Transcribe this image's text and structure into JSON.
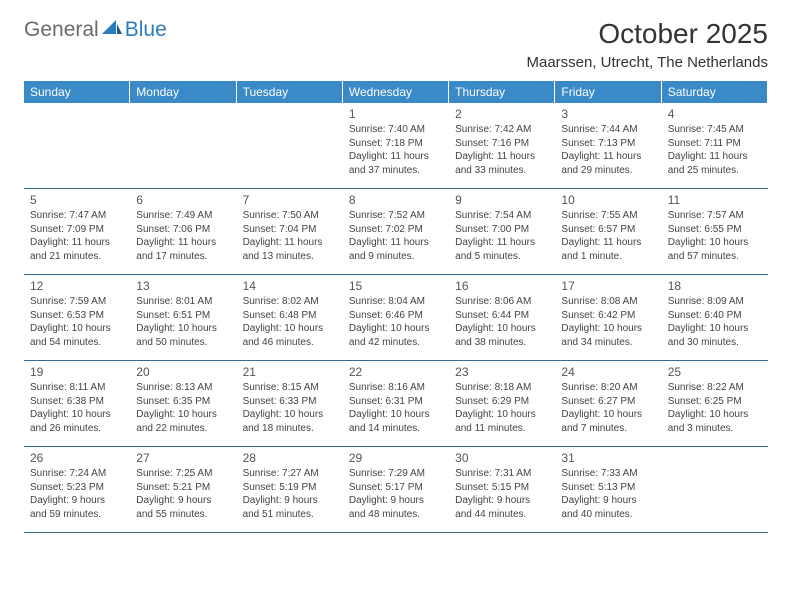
{
  "logo": {
    "word1": "General",
    "word2": "Blue"
  },
  "title": "October 2025",
  "location": "Maarssen, Utrecht, The Netherlands",
  "colors": {
    "header_bg": "#3a8ac8",
    "border": "#3a6a94",
    "logo_gray": "#6b6b6b",
    "logo_blue": "#2b7bbf"
  },
  "weekdays": [
    "Sunday",
    "Monday",
    "Tuesday",
    "Wednesday",
    "Thursday",
    "Friday",
    "Saturday"
  ],
  "weeks": [
    [
      null,
      null,
      null,
      {
        "n": "1",
        "sr": "Sunrise: 7:40 AM",
        "ss": "Sunset: 7:18 PM",
        "dl": "Daylight: 11 hours and 37 minutes."
      },
      {
        "n": "2",
        "sr": "Sunrise: 7:42 AM",
        "ss": "Sunset: 7:16 PM",
        "dl": "Daylight: 11 hours and 33 minutes."
      },
      {
        "n": "3",
        "sr": "Sunrise: 7:44 AM",
        "ss": "Sunset: 7:13 PM",
        "dl": "Daylight: 11 hours and 29 minutes."
      },
      {
        "n": "4",
        "sr": "Sunrise: 7:45 AM",
        "ss": "Sunset: 7:11 PM",
        "dl": "Daylight: 11 hours and 25 minutes."
      }
    ],
    [
      {
        "n": "5",
        "sr": "Sunrise: 7:47 AM",
        "ss": "Sunset: 7:09 PM",
        "dl": "Daylight: 11 hours and 21 minutes."
      },
      {
        "n": "6",
        "sr": "Sunrise: 7:49 AM",
        "ss": "Sunset: 7:06 PM",
        "dl": "Daylight: 11 hours and 17 minutes."
      },
      {
        "n": "7",
        "sr": "Sunrise: 7:50 AM",
        "ss": "Sunset: 7:04 PM",
        "dl": "Daylight: 11 hours and 13 minutes."
      },
      {
        "n": "8",
        "sr": "Sunrise: 7:52 AM",
        "ss": "Sunset: 7:02 PM",
        "dl": "Daylight: 11 hours and 9 minutes."
      },
      {
        "n": "9",
        "sr": "Sunrise: 7:54 AM",
        "ss": "Sunset: 7:00 PM",
        "dl": "Daylight: 11 hours and 5 minutes."
      },
      {
        "n": "10",
        "sr": "Sunrise: 7:55 AM",
        "ss": "Sunset: 6:57 PM",
        "dl": "Daylight: 11 hours and 1 minute."
      },
      {
        "n": "11",
        "sr": "Sunrise: 7:57 AM",
        "ss": "Sunset: 6:55 PM",
        "dl": "Daylight: 10 hours and 57 minutes."
      }
    ],
    [
      {
        "n": "12",
        "sr": "Sunrise: 7:59 AM",
        "ss": "Sunset: 6:53 PM",
        "dl": "Daylight: 10 hours and 54 minutes."
      },
      {
        "n": "13",
        "sr": "Sunrise: 8:01 AM",
        "ss": "Sunset: 6:51 PM",
        "dl": "Daylight: 10 hours and 50 minutes."
      },
      {
        "n": "14",
        "sr": "Sunrise: 8:02 AM",
        "ss": "Sunset: 6:48 PM",
        "dl": "Daylight: 10 hours and 46 minutes."
      },
      {
        "n": "15",
        "sr": "Sunrise: 8:04 AM",
        "ss": "Sunset: 6:46 PM",
        "dl": "Daylight: 10 hours and 42 minutes."
      },
      {
        "n": "16",
        "sr": "Sunrise: 8:06 AM",
        "ss": "Sunset: 6:44 PM",
        "dl": "Daylight: 10 hours and 38 minutes."
      },
      {
        "n": "17",
        "sr": "Sunrise: 8:08 AM",
        "ss": "Sunset: 6:42 PM",
        "dl": "Daylight: 10 hours and 34 minutes."
      },
      {
        "n": "18",
        "sr": "Sunrise: 8:09 AM",
        "ss": "Sunset: 6:40 PM",
        "dl": "Daylight: 10 hours and 30 minutes."
      }
    ],
    [
      {
        "n": "19",
        "sr": "Sunrise: 8:11 AM",
        "ss": "Sunset: 6:38 PM",
        "dl": "Daylight: 10 hours and 26 minutes."
      },
      {
        "n": "20",
        "sr": "Sunrise: 8:13 AM",
        "ss": "Sunset: 6:35 PM",
        "dl": "Daylight: 10 hours and 22 minutes."
      },
      {
        "n": "21",
        "sr": "Sunrise: 8:15 AM",
        "ss": "Sunset: 6:33 PM",
        "dl": "Daylight: 10 hours and 18 minutes."
      },
      {
        "n": "22",
        "sr": "Sunrise: 8:16 AM",
        "ss": "Sunset: 6:31 PM",
        "dl": "Daylight: 10 hours and 14 minutes."
      },
      {
        "n": "23",
        "sr": "Sunrise: 8:18 AM",
        "ss": "Sunset: 6:29 PM",
        "dl": "Daylight: 10 hours and 11 minutes."
      },
      {
        "n": "24",
        "sr": "Sunrise: 8:20 AM",
        "ss": "Sunset: 6:27 PM",
        "dl": "Daylight: 10 hours and 7 minutes."
      },
      {
        "n": "25",
        "sr": "Sunrise: 8:22 AM",
        "ss": "Sunset: 6:25 PM",
        "dl": "Daylight: 10 hours and 3 minutes."
      }
    ],
    [
      {
        "n": "26",
        "sr": "Sunrise: 7:24 AM",
        "ss": "Sunset: 5:23 PM",
        "dl": "Daylight: 9 hours and 59 minutes."
      },
      {
        "n": "27",
        "sr": "Sunrise: 7:25 AM",
        "ss": "Sunset: 5:21 PM",
        "dl": "Daylight: 9 hours and 55 minutes."
      },
      {
        "n": "28",
        "sr": "Sunrise: 7:27 AM",
        "ss": "Sunset: 5:19 PM",
        "dl": "Daylight: 9 hours and 51 minutes."
      },
      {
        "n": "29",
        "sr": "Sunrise: 7:29 AM",
        "ss": "Sunset: 5:17 PM",
        "dl": "Daylight: 9 hours and 48 minutes."
      },
      {
        "n": "30",
        "sr": "Sunrise: 7:31 AM",
        "ss": "Sunset: 5:15 PM",
        "dl": "Daylight: 9 hours and 44 minutes."
      },
      {
        "n": "31",
        "sr": "Sunrise: 7:33 AM",
        "ss": "Sunset: 5:13 PM",
        "dl": "Daylight: 9 hours and 40 minutes."
      },
      null
    ]
  ]
}
